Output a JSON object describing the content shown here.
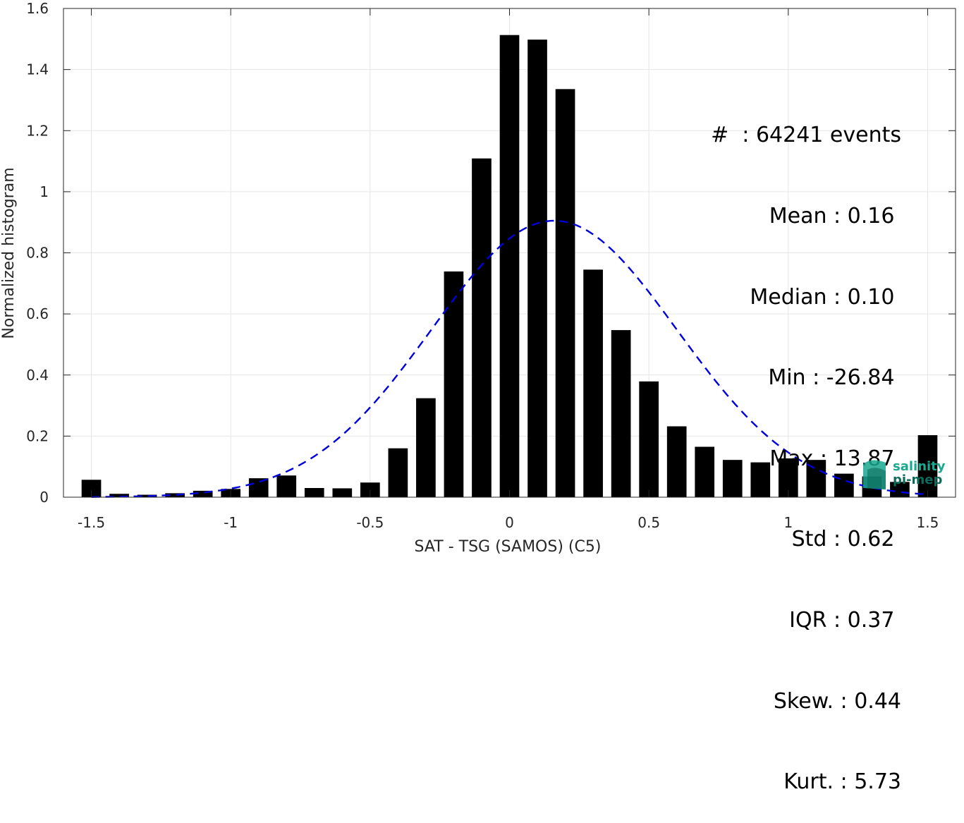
{
  "chart_data": {
    "type": "bar",
    "title": "",
    "xlabel": "SAT - TSG (SAMOS) (C5)",
    "ylabel": "Normalized histogram",
    "xlim": [
      -1.6,
      1.6
    ],
    "ylim": [
      0,
      1.6
    ],
    "grid": true,
    "x_ticks": [
      -1.5,
      -1,
      -0.5,
      0,
      0.5,
      1,
      1.5
    ],
    "x_tick_labels": [
      "-1.5",
      "-1",
      "-0.5",
      "0",
      "0.5",
      "1",
      "1.5"
    ],
    "y_ticks": [
      0,
      0.2,
      0.4,
      0.6,
      0.8,
      1,
      1.2,
      1.4,
      1.6
    ],
    "y_tick_labels": [
      "0",
      "0.2",
      "0.4",
      "0.6",
      "0.8",
      "1",
      "1.2",
      "1.4",
      "1.6"
    ],
    "bin_width": 0.1,
    "bar_width": 0.07,
    "bars": {
      "x": [
        -1.5,
        -1.4,
        -1.3,
        -1.2,
        -1.1,
        -1.0,
        -0.9,
        -0.8,
        -0.7,
        -0.6,
        -0.5,
        -0.4,
        -0.3,
        -0.2,
        -0.1,
        0.0,
        0.1,
        0.2,
        0.3,
        0.4,
        0.5,
        0.6,
        0.7,
        0.8,
        0.9,
        1.0,
        1.1,
        1.2,
        1.3,
        1.4,
        1.5
      ],
      "values": [
        0.057,
        0.011,
        0.008,
        0.013,
        0.021,
        0.027,
        0.062,
        0.071,
        0.03,
        0.029,
        0.048,
        0.16,
        0.324,
        0.739,
        1.109,
        1.513,
        1.498,
        1.336,
        0.745,
        0.547,
        0.379,
        0.232,
        0.165,
        0.122,
        0.114,
        0.127,
        0.122,
        0.077,
        0.068,
        0.05,
        0.203
      ]
    },
    "fit_curve": {
      "type": "gaussian",
      "mean": 0.16,
      "std": 0.44,
      "peak": 0.905,
      "style": "dashed",
      "color": "#0000dd"
    },
    "bar_color": "#000000"
  },
  "stats": [
    "#  : 64241 events",
    "Mean : 0.16 ",
    "Median : 0.10 ",
    "Min : -26.84 ",
    "Max : 13.87 ",
    "Std : 0.62 ",
    "IQR : 0.37 ",
    "Skew. : 0.44",
    "Kurt. : 5.73"
  ],
  "logo": {
    "line1": "salinity",
    "line2": "pi-mep",
    "color": "#1aa88f"
  }
}
